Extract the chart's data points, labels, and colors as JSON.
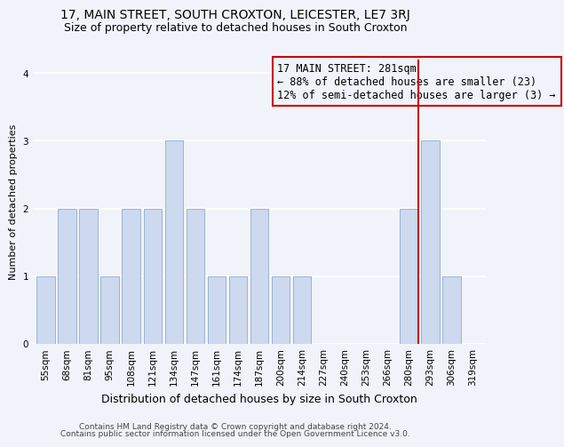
{
  "title": "17, MAIN STREET, SOUTH CROXTON, LEICESTER, LE7 3RJ",
  "subtitle": "Size of property relative to detached houses in South Croxton",
  "xlabel": "Distribution of detached houses by size in South Croxton",
  "ylabel": "Number of detached properties",
  "categories": [
    "55sqm",
    "68sqm",
    "81sqm",
    "95sqm",
    "108sqm",
    "121sqm",
    "134sqm",
    "147sqm",
    "161sqm",
    "174sqm",
    "187sqm",
    "200sqm",
    "214sqm",
    "227sqm",
    "240sqm",
    "253sqm",
    "266sqm",
    "280sqm",
    "293sqm",
    "306sqm",
    "319sqm"
  ],
  "values": [
    1,
    2,
    2,
    1,
    2,
    2,
    3,
    2,
    1,
    1,
    2,
    1,
    1,
    0,
    0,
    0,
    0,
    2,
    3,
    1,
    0
  ],
  "bar_color": "#ccd9ee",
  "bar_edge_color": "#9bb3d4",
  "ylim": [
    0,
    4.2
  ],
  "yticks": [
    0,
    1,
    2,
    3,
    4
  ],
  "property_line_color": "#cc0000",
  "property_line_index": 17,
  "annotation_title": "17 MAIN STREET: 281sqm",
  "annotation_line1": "← 88% of detached houses are smaller (23)",
  "annotation_line2": "12% of semi-detached houses are larger (3) →",
  "annotation_box_color": "#cc0000",
  "footnote1": "Contains HM Land Registry data © Crown copyright and database right 2024.",
  "footnote2": "Contains public sector information licensed under the Open Government Licence v3.0.",
  "bg_color": "#f0f4fa",
  "grid_color": "#ffffff",
  "title_fontsize": 10,
  "subtitle_fontsize": 9,
  "xlabel_fontsize": 9,
  "ylabel_fontsize": 8,
  "tick_fontsize": 7.5,
  "annotation_fontsize": 8.5,
  "footnote_fontsize": 6.5
}
